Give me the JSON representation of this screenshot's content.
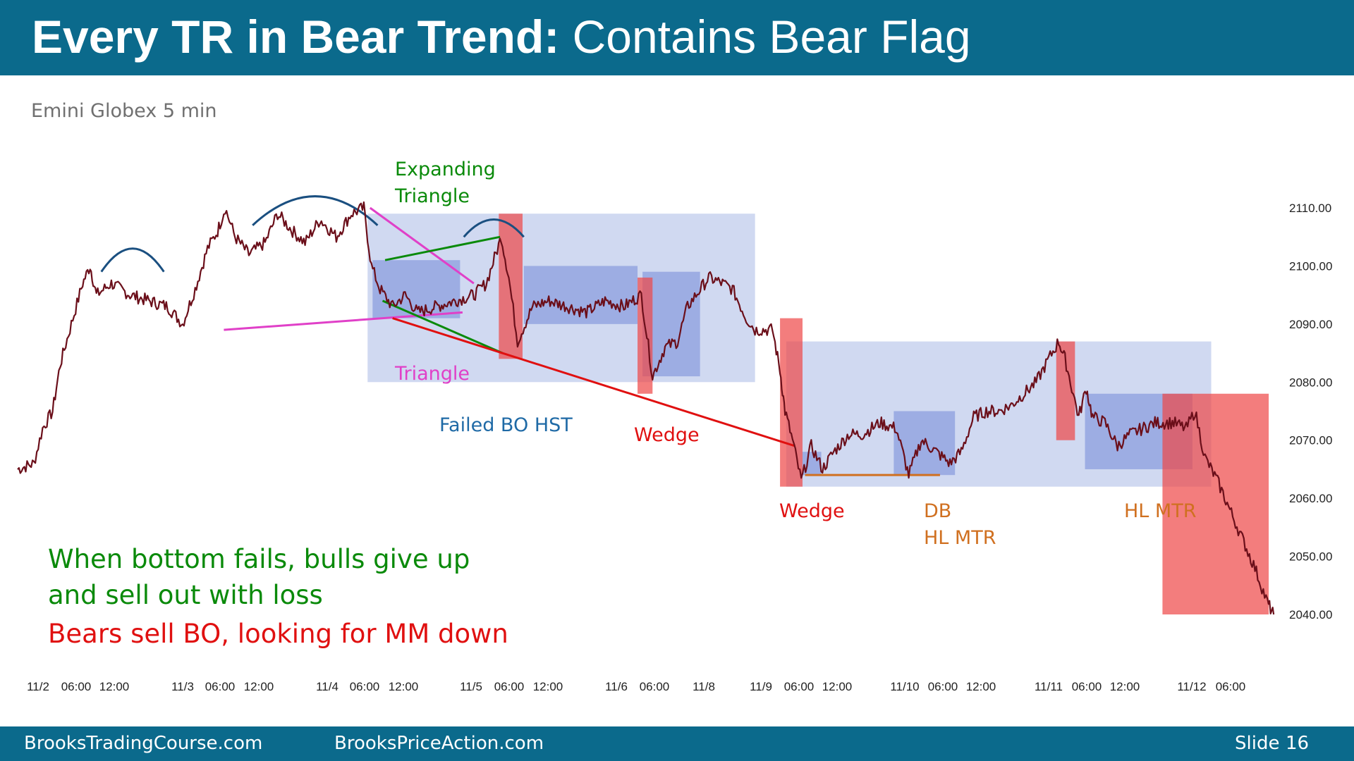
{
  "slide": {
    "title_bold": "Every TR in Bear Trend:",
    "title_rest": "Contains Bear Flag",
    "subtitle": "Emini Globex 5 min",
    "commentary": [
      {
        "text": "When bottom fails, bulls give up",
        "color": "#0a8a0a"
      },
      {
        "text": "and sell out with loss",
        "color": "#0a8a0a"
      },
      {
        "text": "Bears sell BO, looking for MM down",
        "color": "#e01010"
      }
    ],
    "footer": {
      "left": "BrooksTradingCourse.com",
      "center": "BrooksPriceAction.com",
      "slide_label": "Slide",
      "slide_number": "16"
    }
  },
  "chart_data": {
    "type": "line",
    "title": "",
    "ylim": [
      2040,
      2110
    ],
    "yticks": [
      "2110.00",
      "2100.00",
      "2090.00",
      "2080.00",
      "2070.00",
      "2060.00",
      "2050.00",
      "2040.00"
    ],
    "x_tick_labels": [
      "11/2",
      "06:00",
      "12:00",
      "11/3",
      "06:00",
      "12:00",
      "11/4",
      "06:00",
      "12:00",
      "11/5",
      "06:00",
      "12:00",
      "11/6",
      "06:00",
      "11/8",
      "11/9",
      "06:00",
      "12:00",
      "11/10",
      "06:00",
      "12:00",
      "11/11",
      "06:00",
      "12:00",
      "11/12",
      "06:00"
    ],
    "series": [
      {
        "color": "#6b0f1a",
        "points": [
          [
            0,
            2065
          ],
          [
            1.3,
            2066
          ],
          [
            2,
            2072
          ],
          [
            2.8,
            2075
          ],
          [
            3.4,
            2083
          ],
          [
            4.3,
            2090
          ],
          [
            5.2,
            2097
          ],
          [
            5.8,
            2100
          ],
          [
            6.3,
            2095
          ],
          [
            7.5,
            2097
          ],
          [
            9,
            2095
          ],
          [
            10.5,
            2094
          ],
          [
            12,
            2093
          ],
          [
            13.2,
            2090
          ],
          [
            14.2,
            2096
          ],
          [
            15.2,
            2103
          ],
          [
            16,
            2106
          ],
          [
            16.6,
            2110
          ],
          [
            17.4,
            2105
          ],
          [
            18.5,
            2102
          ],
          [
            19.8,
            2104
          ],
          [
            20.8,
            2109
          ],
          [
            22,
            2106
          ],
          [
            23,
            2104
          ],
          [
            24.2,
            2108
          ],
          [
            25.5,
            2105
          ],
          [
            26.7,
            2109
          ],
          [
            27.7,
            2110
          ],
          [
            28.3,
            2100
          ],
          [
            29,
            2096
          ],
          [
            30,
            2093
          ],
          [
            31,
            2095
          ],
          [
            32,
            2092
          ],
          [
            33.5,
            2093
          ],
          [
            35,
            2094
          ],
          [
            36.5,
            2095
          ],
          [
            37.5,
            2097
          ],
          [
            38.7,
            2105
          ],
          [
            39.3,
            2098
          ],
          [
            40,
            2087
          ],
          [
            41.2,
            2093
          ],
          [
            42.5,
            2094
          ],
          [
            44,
            2093
          ],
          [
            45.5,
            2092
          ],
          [
            47,
            2094
          ],
          [
            48.5,
            2093
          ],
          [
            49.9,
            2095
          ],
          [
            50.8,
            2081
          ],
          [
            51.8,
            2086
          ],
          [
            52.8,
            2087
          ],
          [
            53.6,
            2093
          ],
          [
            55.3,
            2098
          ],
          [
            56.4,
            2097
          ],
          [
            57.2,
            2096
          ],
          [
            58.3,
            2091
          ],
          [
            59,
            2089
          ],
          [
            60.4,
            2089
          ],
          [
            61,
            2082
          ],
          [
            61.4,
            2075
          ],
          [
            62,
            2070
          ],
          [
            62.7,
            2063
          ],
          [
            63.5,
            2069
          ],
          [
            64.4,
            2065
          ],
          [
            65.3,
            2068
          ],
          [
            66.5,
            2071
          ],
          [
            67.6,
            2071
          ],
          [
            69,
            2073
          ],
          [
            70.3,
            2072
          ],
          [
            71.3,
            2064
          ],
          [
            72.3,
            2070
          ],
          [
            73.5,
            2068
          ],
          [
            74.6,
            2066
          ],
          [
            75.5,
            2068
          ],
          [
            76.5,
            2074
          ],
          [
            77.5,
            2075
          ],
          [
            78.5,
            2075
          ],
          [
            79.5,
            2076
          ],
          [
            80.5,
            2078
          ],
          [
            81.5,
            2080
          ],
          [
            82.5,
            2084
          ],
          [
            83.3,
            2087
          ],
          [
            83.8,
            2084
          ],
          [
            84.9,
            2074
          ],
          [
            85.5,
            2079
          ],
          [
            86,
            2074
          ],
          [
            87,
            2073
          ],
          [
            88,
            2069
          ],
          [
            89,
            2071
          ],
          [
            90,
            2072
          ],
          [
            91,
            2073
          ],
          [
            92.5,
            2073
          ],
          [
            93.5,
            2072
          ],
          [
            94.2,
            2075
          ],
          [
            95,
            2067
          ],
          [
            96,
            2063
          ],
          [
            97,
            2058
          ],
          [
            98,
            2053
          ],
          [
            99,
            2048
          ],
          [
            100,
            2042
          ],
          [
            100.5,
            2040
          ]
        ]
      }
    ],
    "annotations": [
      {
        "text": "Expanding",
        "color": "#0a8a0a"
      },
      {
        "text": "Triangle",
        "color": "#0a8a0a"
      },
      {
        "text": "Triangle",
        "color": "#e040c8"
      },
      {
        "text": "Failed BO HST",
        "color": "#1f6aa6"
      },
      {
        "text": "Wedge",
        "color": "#e01010"
      },
      {
        "text": "Wedge",
        "color": "#e01010"
      },
      {
        "text": "DB",
        "color": "#d07020"
      },
      {
        "text": "HL MTR",
        "color": "#d07020"
      },
      {
        "text": "HL MTR",
        "color": "#d07020"
      }
    ],
    "trading_ranges": [
      {
        "x": [
          28,
          59
        ],
        "y": [
          2080,
          2109
        ],
        "shade": "light"
      },
      {
        "x": [
          61.5,
          95.5
        ],
        "y": [
          2062,
          2087
        ],
        "shade": "light"
      },
      {
        "x": [
          28.4,
          35.4
        ],
        "y": [
          2091,
          2101
        ],
        "shade": "dark"
      },
      {
        "x": [
          40.5,
          49.6
        ],
        "y": [
          2090,
          2100
        ],
        "shade": "dark"
      },
      {
        "x": [
          50,
          54.6
        ],
        "y": [
          2081,
          2099
        ],
        "shade": "dark"
      },
      {
        "x": [
          62.8,
          64.3
        ],
        "y": [
          2064,
          2068
        ],
        "shade": "dark"
      },
      {
        "x": [
          70.1,
          75
        ],
        "y": [
          2064,
          2075
        ],
        "shade": "dark"
      },
      {
        "x": [
          85.4,
          94
        ],
        "y": [
          2065,
          2078
        ],
        "shade": "dark"
      }
    ],
    "breakouts": [
      {
        "x": [
          38.5,
          40.4
        ],
        "y": [
          2084,
          2109
        ]
      },
      {
        "x": [
          49.6,
          50.8
        ],
        "y": [
          2078,
          2098
        ]
      },
      {
        "x": [
          61,
          62.8
        ],
        "y": [
          2062,
          2091
        ]
      },
      {
        "x": [
          83.1,
          84.6
        ],
        "y": [
          2070,
          2087
        ]
      },
      {
        "x": [
          91.6,
          100.1
        ],
        "y": [
          2040,
          2078
        ]
      }
    ],
    "trendlines": [
      {
        "color": "#e040c8",
        "from": [
          16.5,
          2089
        ],
        "to": [
          35.6,
          2092
        ]
      },
      {
        "color": "#e040c8",
        "from": [
          28.2,
          2110
        ],
        "to": [
          36.5,
          2097
        ]
      },
      {
        "color": "#0a8a0a",
        "from": [
          29.4,
          2101
        ],
        "to": [
          38.6,
          2105
        ]
      },
      {
        "color": "#0a8a0a",
        "from": [
          29.2,
          2094
        ],
        "to": [
          38.8,
          2085
        ]
      },
      {
        "color": "#e01010",
        "from": [
          30,
          2091
        ],
        "to": [
          62.2,
          2069
        ]
      },
      {
        "color": "#d07020",
        "from": [
          63,
          2064
        ],
        "to": [
          73.8,
          2064
        ]
      }
    ],
    "arcs": [
      {
        "from": [
          6.7,
          2099
        ],
        "to": [
          11.7,
          2099
        ],
        "peak": 2103
      },
      {
        "from": [
          18.8,
          2107
        ],
        "to": [
          28.8,
          2107
        ],
        "peak": 2112
      },
      {
        "from": [
          35.7,
          2105
        ],
        "to": [
          40.5,
          2105
        ],
        "peak": 2108
      }
    ]
  }
}
